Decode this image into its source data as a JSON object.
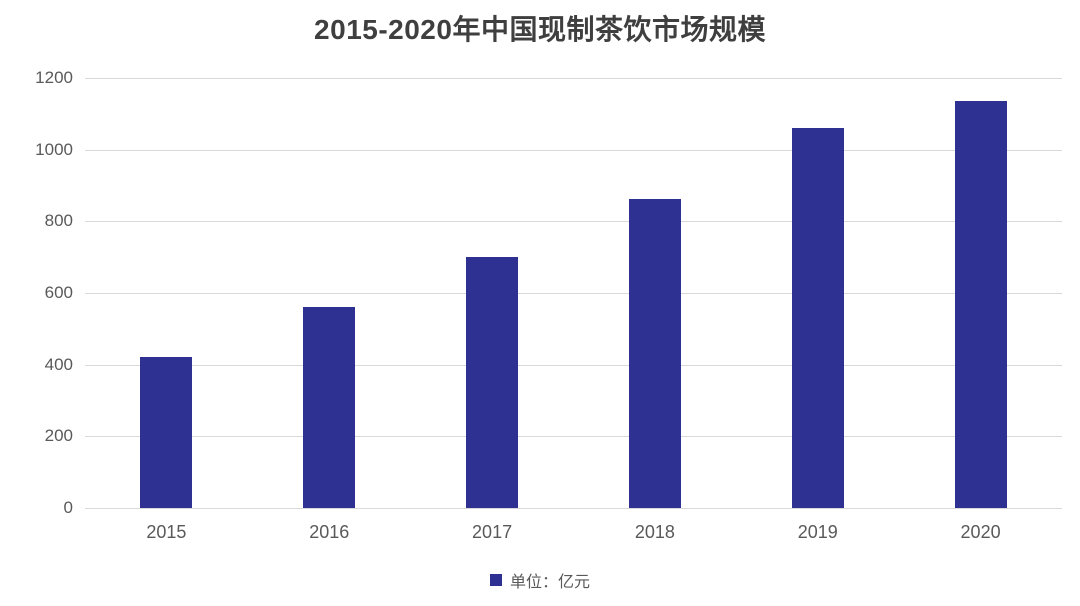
{
  "chart_data": {
    "type": "bar",
    "title": "2015-2020年中国现制茶饮市场规模",
    "categories": [
      "2015",
      "2016",
      "2017",
      "2018",
      "2019",
      "2020"
    ],
    "values": [
      422,
      562,
      700,
      862,
      1060,
      1136
    ],
    "legend": "单位：亿元",
    "xlabel": "",
    "ylabel": "",
    "ylim": [
      0,
      1200
    ],
    "y_ticks": [
      0,
      200,
      400,
      600,
      800,
      1000,
      1200
    ],
    "grid": "horizontal",
    "legend_position": "bottom-center",
    "bar_color": "#2e3192",
    "gridline_color": "#d9d9d9",
    "tick_label_color": "#595959",
    "title_color": "#3f3f3f",
    "background_color": "#ffffff"
  }
}
